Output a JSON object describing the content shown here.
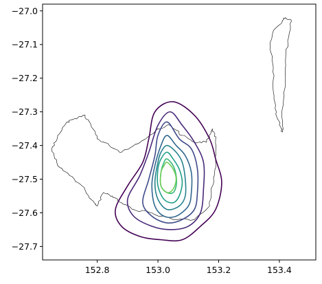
{
  "chart_data": {
    "type": "contour",
    "title": "",
    "xlabel": "",
    "ylabel": "",
    "xlim": [
      152.62,
      153.52
    ],
    "ylim": [
      -27.74,
      -26.98
    ],
    "xticks": [
      152.8,
      153.0,
      153.2,
      153.4
    ],
    "xtick_labels": [
      "152.8",
      "153.0",
      "153.2",
      "153.4"
    ],
    "yticks": [
      -27.0,
      -27.1,
      -27.2,
      -27.3,
      -27.4,
      -27.5,
      -27.6,
      -27.7
    ],
    "ytick_labels": [
      "−27.0",
      "−27.1",
      "−27.2",
      "−27.3",
      "−27.4",
      "−27.5",
      "−27.6",
      "−27.7"
    ],
    "grid": false,
    "legend": false,
    "contour_levels": [
      {
        "level": 1,
        "color": "#440154",
        "points": [
          [
            153.05,
            -27.27
          ],
          [
            153.12,
            -27.31
          ],
          [
            153.17,
            -27.38
          ],
          [
            153.19,
            -27.44
          ],
          [
            153.21,
            -27.51
          ],
          [
            153.19,
            -27.59
          ],
          [
            153.14,
            -27.64
          ],
          [
            153.08,
            -27.68
          ],
          [
            153.01,
            -27.68
          ],
          [
            152.94,
            -27.67
          ],
          [
            152.88,
            -27.64
          ],
          [
            152.86,
            -27.59
          ],
          [
            152.9,
            -27.52
          ],
          [
            152.95,
            -27.45
          ],
          [
            152.97,
            -27.38
          ],
          [
            152.99,
            -27.3
          ]
        ]
      },
      {
        "level": 2,
        "color": "#482878",
        "points": [
          [
            153.04,
            -27.3
          ],
          [
            153.08,
            -27.34
          ],
          [
            153.12,
            -27.39
          ],
          [
            153.15,
            -27.45
          ],
          [
            153.15,
            -27.53
          ],
          [
            153.14,
            -27.6
          ],
          [
            153.1,
            -27.64
          ],
          [
            153.04,
            -27.65
          ],
          [
            152.98,
            -27.64
          ],
          [
            152.92,
            -27.61
          ],
          [
            152.9,
            -27.56
          ],
          [
            152.94,
            -27.49
          ],
          [
            152.97,
            -27.42
          ],
          [
            153.0,
            -27.34
          ]
        ]
      },
      {
        "level": 3,
        "color": "#3e4a89",
        "points": [
          [
            153.03,
            -27.33
          ],
          [
            153.07,
            -27.38
          ],
          [
            153.11,
            -27.41
          ],
          [
            153.13,
            -27.47
          ],
          [
            153.13,
            -27.54
          ],
          [
            153.12,
            -27.59
          ],
          [
            153.08,
            -27.62
          ],
          [
            153.03,
            -27.63
          ],
          [
            152.98,
            -27.61
          ],
          [
            152.95,
            -27.57
          ],
          [
            152.97,
            -27.5
          ],
          [
            152.99,
            -27.43
          ],
          [
            153.0,
            -27.37
          ]
        ]
      },
      {
        "level": 4,
        "color": "#31688e",
        "points": [
          [
            153.03,
            -27.37
          ],
          [
            153.06,
            -27.4
          ],
          [
            153.09,
            -27.43
          ],
          [
            153.11,
            -27.48
          ],
          [
            153.11,
            -27.54
          ],
          [
            153.1,
            -27.58
          ],
          [
            153.06,
            -27.61
          ],
          [
            153.02,
            -27.61
          ],
          [
            152.99,
            -27.58
          ],
          [
            152.98,
            -27.52
          ],
          [
            152.99,
            -27.46
          ],
          [
            153.01,
            -27.4
          ]
        ]
      },
      {
        "level": 5,
        "color": "#26828e",
        "points": [
          [
            153.03,
            -27.4
          ],
          [
            153.06,
            -27.42
          ],
          [
            153.08,
            -27.45
          ],
          [
            153.09,
            -27.5
          ],
          [
            153.09,
            -27.55
          ],
          [
            153.07,
            -27.58
          ],
          [
            153.03,
            -27.59
          ],
          [
            153.0,
            -27.56
          ],
          [
            152.99,
            -27.51
          ],
          [
            153.0,
            -27.45
          ],
          [
            153.01,
            -27.42
          ]
        ]
      },
      {
        "level": 6,
        "color": "#1f9e89",
        "points": [
          [
            153.03,
            -27.42
          ],
          [
            153.05,
            -27.44
          ],
          [
            153.07,
            -27.47
          ],
          [
            153.08,
            -27.51
          ],
          [
            153.07,
            -27.55
          ],
          [
            153.05,
            -27.57
          ],
          [
            153.02,
            -27.56
          ],
          [
            153.0,
            -27.52
          ],
          [
            153.0,
            -27.47
          ],
          [
            153.01,
            -27.44
          ]
        ]
      },
      {
        "level": 7,
        "color": "#35b779",
        "points": [
          [
            153.03,
            -27.44
          ],
          [
            153.05,
            -27.46
          ],
          [
            153.06,
            -27.49
          ],
          [
            153.06,
            -27.52
          ],
          [
            153.05,
            -27.54
          ],
          [
            153.03,
            -27.54
          ],
          [
            153.01,
            -27.52
          ],
          [
            153.01,
            -27.48
          ],
          [
            153.02,
            -27.45
          ]
        ]
      },
      {
        "level": 8,
        "color": "#6ece58",
        "points": [
          [
            153.03,
            -27.45
          ],
          [
            153.05,
            -27.47
          ],
          [
            153.06,
            -27.5
          ],
          [
            153.05,
            -27.53
          ],
          [
            153.03,
            -27.54
          ],
          [
            153.01,
            -27.52
          ],
          [
            153.01,
            -27.48
          ],
          [
            153.02,
            -27.46
          ]
        ]
      }
    ],
    "map_outlines": [
      {
        "name": "mainland-outline",
        "points": [
          [
            152.7,
            -27.33
          ],
          [
            152.73,
            -27.32
          ],
          [
            152.76,
            -27.31
          ],
          [
            152.78,
            -27.34
          ],
          [
            152.8,
            -27.38
          ],
          [
            152.84,
            -27.4
          ],
          [
            152.88,
            -27.42
          ],
          [
            152.92,
            -27.4
          ],
          [
            152.96,
            -27.38
          ],
          [
            153.0,
            -27.35
          ],
          [
            153.04,
            -27.34
          ],
          [
            153.08,
            -27.37
          ],
          [
            153.12,
            -27.39
          ],
          [
            153.16,
            -27.39
          ],
          [
            153.18,
            -27.35
          ],
          [
            153.19,
            -27.38
          ],
          [
            153.19,
            -27.45
          ],
          [
            153.18,
            -27.52
          ],
          [
            153.17,
            -27.58
          ],
          [
            153.12,
            -27.62
          ],
          [
            153.05,
            -27.62
          ],
          [
            152.98,
            -27.6
          ],
          [
            152.92,
            -27.59
          ],
          [
            152.88,
            -27.57
          ],
          [
            152.85,
            -27.55
          ],
          [
            152.82,
            -27.54
          ],
          [
            152.8,
            -27.58
          ],
          [
            152.78,
            -27.56
          ],
          [
            152.75,
            -27.52
          ],
          [
            152.71,
            -27.49
          ],
          [
            152.67,
            -27.46
          ],
          [
            152.65,
            -27.41
          ],
          [
            152.67,
            -27.37
          ]
        ]
      },
      {
        "name": "island-outline",
        "points": [
          [
            153.41,
            -27.03
          ],
          [
            153.42,
            -27.02
          ],
          [
            153.44,
            -27.03
          ],
          [
            153.43,
            -27.08
          ],
          [
            153.42,
            -27.15
          ],
          [
            153.42,
            -27.22
          ],
          [
            153.41,
            -27.29
          ],
          [
            153.41,
            -27.36
          ],
          [
            153.4,
            -27.34
          ],
          [
            153.39,
            -27.3
          ],
          [
            153.38,
            -27.24
          ],
          [
            153.38,
            -27.17
          ],
          [
            153.37,
            -27.1
          ],
          [
            153.38,
            -27.06
          ]
        ]
      }
    ]
  }
}
